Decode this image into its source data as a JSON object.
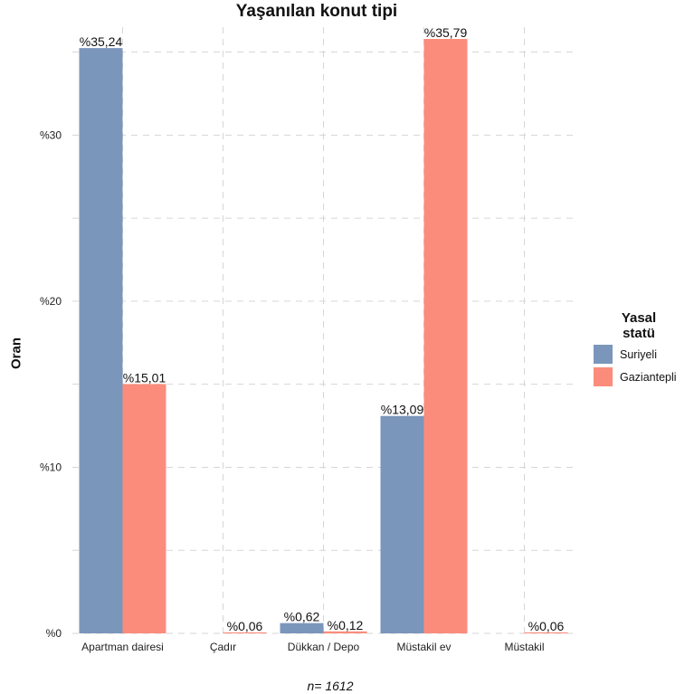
{
  "chart_data": {
    "type": "bar",
    "title": "Yaşanılan konut tipi",
    "xlabel": "",
    "ylabel": "Oran",
    "caption": "n=  1612",
    "categories": [
      "Apartman dairesi",
      "Çadır",
      "Dükkan / Depo",
      "Müstakil ev",
      "Müstakil"
    ],
    "series": [
      {
        "name": "Suriyeli",
        "color": "#7b96bb",
        "values": [
          35.24,
          0,
          0.62,
          13.09,
          0
        ],
        "labels": [
          "%35,24",
          "",
          "%0,62",
          "%13,09",
          ""
        ]
      },
      {
        "name": "Gaziantepli",
        "color": "#fb8c7c",
        "values": [
          15.01,
          0.06,
          0.12,
          35.79,
          0.06
        ],
        "labels": [
          "%15,01",
          "%0,06",
          "%0,12",
          "%35,79",
          "%0,06"
        ]
      }
    ],
    "yticks": [
      0,
      10,
      20,
      30
    ],
    "ytick_labels": [
      "%0",
      "%10",
      "%20",
      "%30"
    ],
    "ylim": [
      0,
      36.5
    ],
    "grid": true,
    "legend": {
      "title": "Yasal\nstatü",
      "position": "right"
    }
  }
}
